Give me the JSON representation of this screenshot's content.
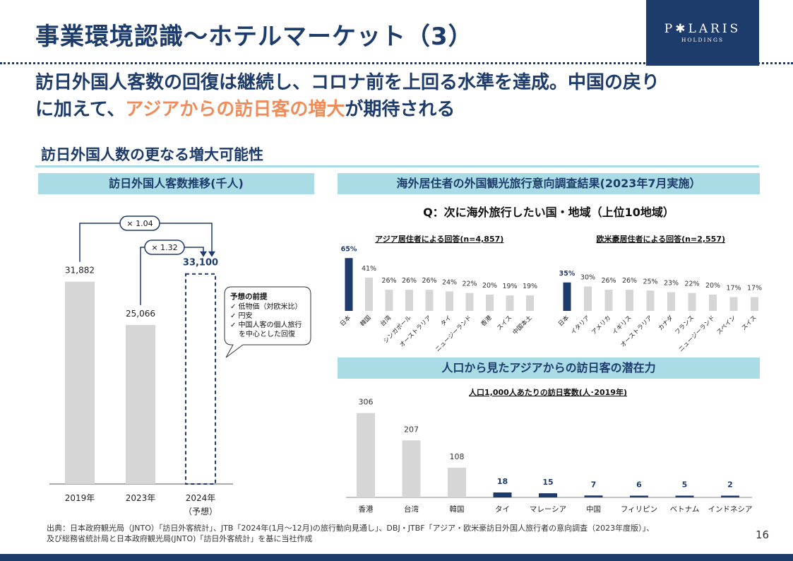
{
  "slide": {
    "title": "事業環境認識～ホテルマーケット（3）",
    "logo_main": "P✱LARIS",
    "logo_sub": "HOLDINGS",
    "subtitle_line1": "訪日外国人客数の回復は継続し、コロナ前を上回る水準を達成。中国の戻り",
    "subtitle_line2_a": "に加えて、",
    "subtitle_line2_highlight": "アジアからの訪日客の増大",
    "subtitle_line2_b": "が期待される",
    "section_title": "訪日外国人数の更なる増大可能性",
    "page_number": "16",
    "footnote_line1": "出典：日本政府観光局（JNTO）「訪日外客統計」、JTB「2024年(1月～12月)の旅行動向見通し」、DBJ・JTBF「アジア・欧米豪訪日外国人旅行者の意向調査（2023年度版）」、",
    "footnote_line2": "及び総務省統計局と日本政府観光局(JNTO)「訪日外客統計」を基に当社作成"
  },
  "colors": {
    "navy": "#1d3b6b",
    "light_blue": "#a9dce4",
    "gray_bar": "#d6d6d6",
    "highlight": "#f08c5a"
  },
  "chart_data": [
    {
      "id": "visitors",
      "type": "bar",
      "title": "訪日外国人客数推移(千人)",
      "categories": [
        "2019年",
        "2023年",
        "2024年"
      ],
      "category_sublabels": [
        "",
        "",
        "（予想）"
      ],
      "values": [
        31882,
        25066,
        33100
      ],
      "value_labels": [
        "31,882",
        "25,066",
        "33,100"
      ],
      "forecast_index": 2,
      "ylim": [
        0,
        36000
      ],
      "annotations": [
        "× 1.04",
        "× 1.32"
      ],
      "callout": {
        "title": "予想の前提",
        "items": [
          "✓ 低物価（対欧米比）",
          "✓ 円安",
          "✓ 中国人客の個人旅行",
          "を中心とした回復"
        ]
      }
    },
    {
      "id": "asia_survey",
      "type": "bar",
      "panel_title": "海外居住者の外国観光旅行意向調査結果(2023年7月実施）",
      "question": "Q：次に海外旅行したい国・地域（上位10地域）",
      "title": "アジア居住者による回答(n=4,857)",
      "categories": [
        "日本",
        "韓国",
        "台湾",
        "シンガポール",
        "オーストラリア",
        "タイ",
        "ニュージーランド",
        "香港",
        "スイス",
        "中国本土"
      ],
      "values": [
        65,
        41,
        26,
        26,
        26,
        24,
        22,
        20,
        19,
        19
      ],
      "value_labels": [
        "65%",
        "41%",
        "26%",
        "26%",
        "26%",
        "24%",
        "22%",
        "20%",
        "19%",
        "19%"
      ],
      "highlight_index": 0,
      "ylim": [
        0,
        70
      ]
    },
    {
      "id": "west_survey",
      "type": "bar",
      "title": "欧米豪居住者による回答(n=2,557)",
      "categories": [
        "日本",
        "イタリア",
        "アメリカ",
        "イギリス",
        "オーストラリア",
        "カナダ",
        "フランス",
        "ニュージーランド",
        "スペイン",
        "スイス"
      ],
      "values": [
        35,
        30,
        26,
        26,
        25,
        23,
        22,
        20,
        17,
        17
      ],
      "value_labels": [
        "35%",
        "30%",
        "26%",
        "26%",
        "25%",
        "23%",
        "22%",
        "20%",
        "17%",
        "17%"
      ],
      "highlight_index": 0,
      "ylim": [
        0,
        70
      ]
    },
    {
      "id": "asia_potential",
      "type": "bar",
      "panel_title": "人口から見たアジアからの訪日客の潜在力",
      "title": "人口1,000人あたりの訪日客数(人･2019年)",
      "categories": [
        "香港",
        "台湾",
        "韓国",
        "タイ",
        "マレーシア",
        "中国",
        "フィリピン",
        "ベトナム",
        "インドネシア"
      ],
      "values": [
        306,
        207,
        108,
        18,
        15,
        7,
        6,
        5,
        2
      ],
      "value_labels": [
        "306",
        "207",
        "108",
        "18",
        "15",
        "7",
        "6",
        "5",
        "2"
      ],
      "highlight_from_index": 3,
      "ylim": [
        0,
        330
      ]
    }
  ]
}
